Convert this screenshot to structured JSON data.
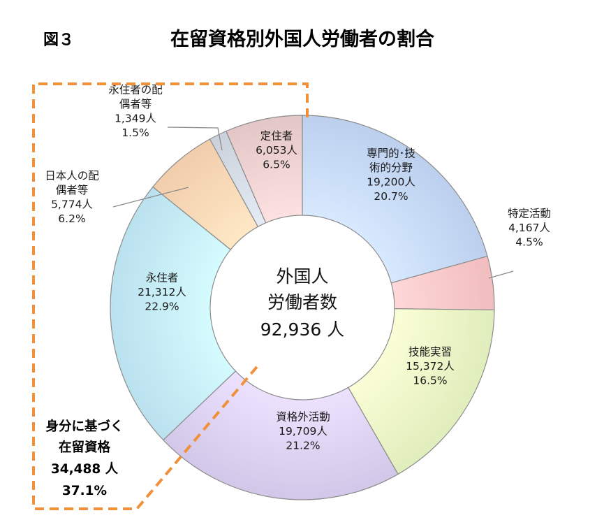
{
  "figure": {
    "number": "図３",
    "title": "在留資格別外国人労働者の割合"
  },
  "center": {
    "line1": "外国人",
    "line2": "労働者数",
    "line3": "92,936 人"
  },
  "group": {
    "line1": "身分に基づく",
    "line2": "在留資格",
    "line3": "34,488 人",
    "line4": "37.1%"
  },
  "chart_data": {
    "type": "donut",
    "title": "在留資格別外国人労働者の割合",
    "total": 92936,
    "slices": [
      {
        "name": "専門的・技術的分野",
        "label_lines": [
          "専門的･技",
          "術的分野"
        ],
        "count": 19200,
        "count_label": "19,200人",
        "percent": 20.7,
        "percent_label": "20.7%",
        "color": "#c6d9f8"
      },
      {
        "name": "特定活動",
        "label_lines": [
          "特定活動"
        ],
        "count": 4167,
        "count_label": "4,167人",
        "percent": 4.5,
        "percent_label": "4.5%",
        "color": "#fbc7c8"
      },
      {
        "name": "技能実習",
        "label_lines": [
          "技能実習"
        ],
        "count": 15372,
        "count_label": "15,372人",
        "percent": 16.5,
        "percent_label": "16.5%",
        "color": "#eaf7c6"
      },
      {
        "name": "資格外活動",
        "label_lines": [
          "資格外活動"
        ],
        "count": 19709,
        "count_label": "19,709人",
        "percent": 21.2,
        "percent_label": "21.2%",
        "color": "#dcd1f2"
      },
      {
        "name": "永住者",
        "label_lines": [
          "永住者"
        ],
        "count": 21312,
        "count_label": "21,312人",
        "percent": 22.9,
        "percent_label": "22.9%",
        "color": "#c4ebf8"
      },
      {
        "name": "日本人の配偶者等",
        "label_lines": [
          "日本人の配",
          "偶者等"
        ],
        "count": 5774,
        "count_label": "5,774人",
        "percent": 6.2,
        "percent_label": "6.2%",
        "color": "#fbd7b5"
      },
      {
        "name": "永住者の配偶者等",
        "label_lines": [
          "永住者の配",
          "偶者等"
        ],
        "count": 1349,
        "count_label": "1,349人",
        "percent": 1.5,
        "percent_label": "1.5%",
        "color": "#d4dbe4"
      },
      {
        "name": "定住者",
        "label_lines": [
          "定住者"
        ],
        "count": 6053,
        "count_label": "6,053人",
        "percent": 6.5,
        "percent_label": "6.5%",
        "color": "#ecd1d0"
      }
    ],
    "colors": {
      "group_dash": "#f0903a",
      "slice_stroke": "#8c8c8c"
    }
  }
}
